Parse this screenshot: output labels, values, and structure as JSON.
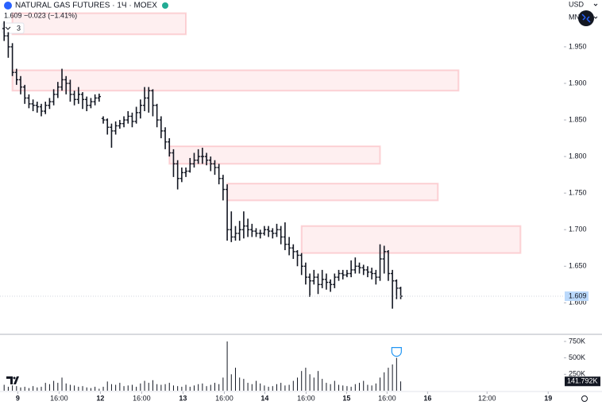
{
  "chart_data": {
    "type": "ohlc",
    "title": "NATURAL GAS FUTURES · 1Ч · MOEX",
    "quote": "1.609  −0.023 (−1.41%)",
    "indicator_count": "3",
    "currency": "USD",
    "unit": "MN",
    "color": "#131722",
    "open": [
      1.975,
      1.965,
      1.95,
      1.915,
      1.905,
      1.895,
      1.88,
      1.872,
      1.87,
      1.868,
      1.862,
      1.87,
      1.875,
      1.885,
      1.895,
      1.905,
      1.9,
      1.885,
      1.878,
      1.885,
      1.878,
      1.87,
      1.875,
      1.88,
      1.852,
      1.85,
      1.84,
      1.835,
      1.842,
      1.845,
      1.85,
      1.855,
      1.848,
      1.86,
      1.87,
      1.88,
      1.89,
      1.87,
      1.85,
      1.835,
      1.82,
      1.805,
      1.79,
      1.77,
      1.778,
      1.78,
      1.79,
      1.795,
      1.8,
      1.8,
      1.795,
      1.79,
      1.785,
      1.77,
      1.755,
      1.7,
      1.69,
      1.695,
      1.7,
      1.705,
      1.7,
      1.698,
      1.695,
      1.695,
      1.7,
      1.698,
      1.695,
      1.7,
      1.69,
      1.68,
      1.675,
      1.67,
      1.665,
      1.65,
      1.635,
      1.63,
      1.635,
      1.625,
      1.632,
      1.628,
      1.625,
      1.635,
      1.64,
      1.638,
      1.64,
      1.645,
      1.65,
      1.648,
      1.645,
      1.642,
      1.64,
      1.635,
      1.66,
      1.67,
      1.64,
      1.63,
      1.62
    ],
    "high": [
      1.985,
      1.97,
      1.955,
      1.92,
      1.91,
      1.898,
      1.885,
      1.878,
      1.875,
      1.872,
      1.875,
      1.88,
      1.892,
      1.902,
      1.92,
      1.91,
      1.905,
      1.89,
      1.895,
      1.888,
      1.882,
      1.88,
      1.885,
      1.886,
      1.855,
      1.852,
      1.845,
      1.848,
      1.85,
      1.855,
      1.862,
      1.86,
      1.868,
      1.878,
      1.895,
      1.895,
      1.892,
      1.872,
      1.855,
      1.84,
      1.825,
      1.81,
      1.795,
      1.785,
      1.785,
      1.798,
      1.805,
      1.81,
      1.812,
      1.805,
      1.8,
      1.795,
      1.79,
      1.775,
      1.762,
      1.725,
      1.705,
      1.712,
      1.725,
      1.715,
      1.708,
      1.702,
      1.7,
      1.705,
      1.705,
      1.702,
      1.708,
      1.705,
      1.71,
      1.69,
      1.68,
      1.672,
      1.668,
      1.655,
      1.64,
      1.645,
      1.64,
      1.645,
      1.64,
      1.632,
      1.64,
      1.645,
      1.645,
      1.645,
      1.658,
      1.662,
      1.655,
      1.652,
      1.65,
      1.648,
      1.645,
      1.68,
      1.678,
      1.672,
      1.645,
      1.632,
      1.622
    ],
    "low": [
      1.958,
      1.935,
      1.91,
      1.898,
      1.885,
      1.872,
      1.866,
      1.862,
      1.86,
      1.855,
      1.858,
      1.865,
      1.87,
      1.88,
      1.89,
      1.885,
      1.875,
      1.87,
      1.872,
      1.865,
      1.862,
      1.866,
      1.87,
      1.875,
      1.845,
      1.83,
      1.812,
      1.83,
      1.838,
      1.84,
      1.845,
      1.84,
      1.845,
      1.852,
      1.862,
      1.86,
      1.855,
      1.84,
      1.825,
      1.81,
      1.8,
      1.772,
      1.755,
      1.765,
      1.772,
      1.778,
      1.785,
      1.79,
      1.79,
      1.788,
      1.78,
      1.775,
      1.762,
      1.74,
      1.685,
      1.683,
      1.685,
      1.685,
      1.688,
      1.69,
      1.69,
      1.69,
      1.688,
      1.692,
      1.69,
      1.688,
      1.69,
      1.68,
      1.672,
      1.665,
      1.66,
      1.65,
      1.638,
      1.625,
      1.608,
      1.625,
      1.612,
      1.62,
      1.618,
      1.615,
      1.62,
      1.63,
      1.632,
      1.635,
      1.635,
      1.64,
      1.64,
      1.638,
      1.635,
      1.632,
      1.625,
      1.63,
      1.64,
      1.63,
      1.592,
      1.605,
      1.605
    ],
    "close": [
      1.965,
      1.95,
      1.915,
      1.905,
      1.895,
      1.88,
      1.872,
      1.87,
      1.868,
      1.862,
      1.87,
      1.875,
      1.885,
      1.895,
      1.905,
      1.9,
      1.885,
      1.878,
      1.885,
      1.878,
      1.87,
      1.875,
      1.88,
      1.882,
      1.85,
      1.84,
      1.835,
      1.842,
      1.845,
      1.85,
      1.855,
      1.848,
      1.86,
      1.87,
      1.88,
      1.89,
      1.87,
      1.85,
      1.835,
      1.82,
      1.805,
      1.79,
      1.77,
      1.778,
      1.78,
      1.79,
      1.795,
      1.8,
      1.8,
      1.795,
      1.79,
      1.785,
      1.77,
      1.755,
      1.7,
      1.69,
      1.695,
      1.7,
      1.705,
      1.7,
      1.698,
      1.695,
      1.695,
      1.7,
      1.698,
      1.695,
      1.7,
      1.69,
      1.68,
      1.675,
      1.67,
      1.665,
      1.65,
      1.635,
      1.63,
      1.635,
      1.625,
      1.632,
      1.628,
      1.625,
      1.635,
      1.64,
      1.638,
      1.64,
      1.645,
      1.65,
      1.648,
      1.645,
      1.642,
      1.64,
      1.635,
      1.66,
      1.67,
      1.64,
      1.63,
      1.62,
      1.609
    ],
    "volume": [
      90000,
      60000,
      80000,
      70000,
      50000,
      60000,
      40000,
      70000,
      50000,
      60000,
      120000,
      100000,
      150000,
      120000,
      200000,
      110000,
      90000,
      80000,
      60000,
      70000,
      50000,
      40000,
      60000,
      30000,
      60000,
      140000,
      100000,
      90000,
      120000,
      70000,
      80000,
      90000,
      60000,
      110000,
      150000,
      120000,
      160000,
      100000,
      90000,
      100000,
      120000,
      80000,
      70000,
      60000,
      90000,
      60000,
      80000,
      100000,
      110000,
      70000,
      90000,
      120000,
      100000,
      200000,
      750000,
      250000,
      350000,
      200000,
      180000,
      120000,
      100000,
      150000,
      110000,
      80000,
      60000,
      70000,
      100000,
      120000,
      80000,
      90000,
      150000,
      200000,
      300000,
      350000,
      250000,
      200000,
      300000,
      180000,
      120000,
      100000,
      150000,
      90000,
      80000,
      70000,
      60000,
      100000,
      120000,
      150000,
      90000,
      80000,
      110000,
      200000,
      280000,
      350000,
      400000,
      500000,
      141792
    ],
    "volume_last_label": "141.792K",
    "volume_color": "#131722",
    "zones": [
      {
        "x": [
          2,
          44
        ],
        "y": [
          1.967,
          1.996
        ]
      },
      {
        "x": [
          2,
          110
        ],
        "y": [
          1.89,
          1.918
        ]
      },
      {
        "x": [
          40,
          91
        ],
        "y": [
          1.79,
          1.814
        ]
      },
      {
        "x": [
          54,
          105
        ],
        "y": [
          1.74,
          1.763
        ]
      },
      {
        "x": [
          72,
          125
        ],
        "y": [
          1.668,
          1.705
        ]
      }
    ],
    "zone_color": "#f23645",
    "xlim": [
      -1,
      135.5
    ],
    "xticks": [
      {
        "value": 3.3,
        "label": "9"
      },
      {
        "value": 13.3,
        "label": "16:00"
      },
      {
        "value": 23.3,
        "label": "12"
      },
      {
        "value": 33.3,
        "label": "16:00"
      },
      {
        "value": 43.3,
        "label": "13"
      },
      {
        "value": 53.3,
        "label": "16:00"
      },
      {
        "value": 63.1,
        "label": "14"
      },
      {
        "value": 73.1,
        "label": "16:00"
      },
      {
        "value": 82.9,
        "label": "15"
      },
      {
        "value": 92.7,
        "label": "16:00"
      },
      {
        "value": 102.5,
        "label": "16"
      },
      {
        "value": 116.9,
        "label": "12:00"
      },
      {
        "value": 131.7,
        "label": "19"
      }
    ],
    "ylim": [
      1.558,
      2.014
    ],
    "yticks": [
      {
        "value": 1.6,
        "label": "1.600"
      },
      {
        "value": 1.65,
        "label": "1.650"
      },
      {
        "value": 1.7,
        "label": "1.700"
      },
      {
        "value": 1.75,
        "label": "1.750"
      },
      {
        "value": 1.8,
        "label": "1.800"
      },
      {
        "value": 1.85,
        "label": "1.850"
      },
      {
        "value": 1.9,
        "label": "1.900"
      },
      {
        "value": 1.95,
        "label": "1.950"
      }
    ],
    "vol_ylim": [
      0,
      822000
    ],
    "vol_yticks": [
      {
        "value": 250000,
        "label": "250K"
      },
      {
        "value": 500000,
        "label": "500K"
      },
      {
        "value": 750000,
        "label": "750K"
      }
    ]
  }
}
